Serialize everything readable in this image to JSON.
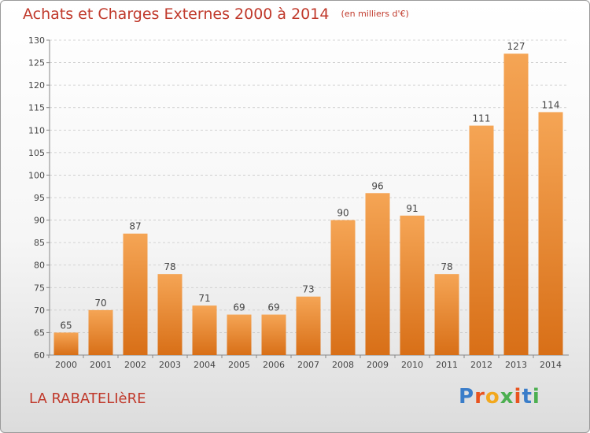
{
  "header": {
    "title": "Achats et Charges Externes 2000 à 2014",
    "unit": "(en milliers d'€)"
  },
  "footer": {
    "commune": "LA RABATELIèRE",
    "logo": [
      "P",
      "r",
      "o",
      "x",
      "i",
      "t",
      "i"
    ]
  },
  "colors": {
    "bar_top": "#f5a555",
    "bar_bottom": "#d86f17",
    "title": "#c0392b",
    "logo": [
      "#3a7dc9",
      "#e8531f",
      "#f2a81d",
      "#4caf50",
      "#e8531f",
      "#3a7dc9",
      "#4caf50"
    ]
  },
  "chart_data": {
    "type": "bar",
    "categories": [
      "2000",
      "2001",
      "2002",
      "2003",
      "2004",
      "2005",
      "2006",
      "2007",
      "2008",
      "2009",
      "2010",
      "2011",
      "2012",
      "2013",
      "2014"
    ],
    "values": [
      65,
      70,
      87,
      78,
      71,
      69,
      69,
      73,
      90,
      96,
      91,
      78,
      111,
      127,
      114
    ],
    "ylim": [
      60,
      130
    ],
    "yticks": [
      60,
      65,
      70,
      75,
      80,
      85,
      90,
      95,
      100,
      105,
      110,
      115,
      120,
      125,
      130
    ],
    "grid": "horizontal-dashed",
    "title": "Achats et Charges Externes 2000 à 2014",
    "xlabel": "",
    "ylabel": ""
  }
}
